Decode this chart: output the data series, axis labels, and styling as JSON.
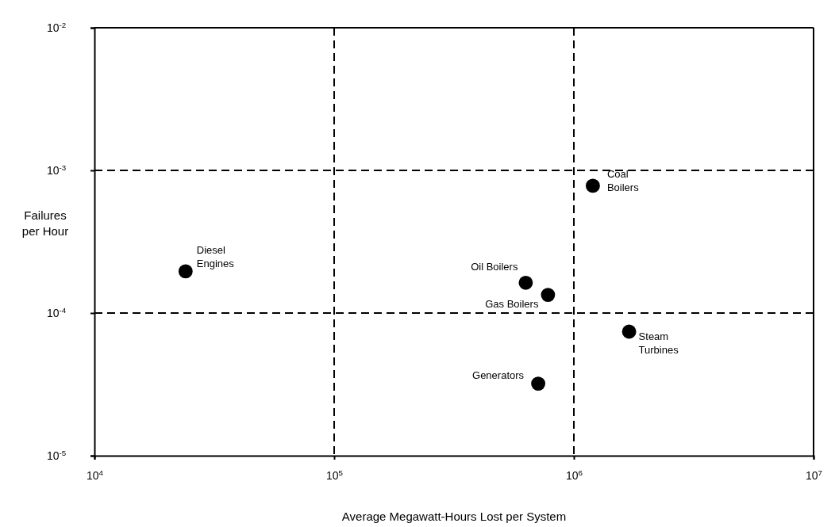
{
  "chart_data": {
    "type": "scatter",
    "xlabel": "Average Megawatt-Hours Lost per System",
    "ylabel": "Failures\nper Hour",
    "log": "xy",
    "grid": true,
    "marker": "circle",
    "xlim": [
      10000,
      10000000
    ],
    "ylim": [
      1e-05,
      0.01
    ],
    "xticks": [
      {
        "value": 10000,
        "label": "10$^{4}$"
      },
      {
        "value": 100000,
        "label": "10$^{5}$"
      },
      {
        "value": 1000000,
        "label": "10$^{6}$"
      },
      {
        "value": 10000000,
        "label": "10$^{7}$"
      }
    ],
    "yticks": [
      {
        "value": 1e-05,
        "label": "10$^{-5}$"
      },
      {
        "value": 0.0001,
        "label": "10$^{-4}$"
      },
      {
        "value": 0.001,
        "label": "10$^{-3}$"
      },
      {
        "value": 0.01,
        "label": "10$^{-2}$"
      }
    ],
    "series": [
      {
        "color": "#000000",
        "x": [
          24000,
          630000,
          780000,
          1200000,
          1700000,
          710000
        ],
        "values": [
          0.000196,
          0.000163,
          0.000134,
          0.00078,
          7.4e-05,
          3.2e-05
        ]
      }
    ],
    "annotations": [
      {
        "text": "Diesel\nEngines",
        "x": 24000,
        "y": 0.000196
      },
      {
        "text": "Oil Boilers",
        "x": 630000,
        "y": 0.000163
      },
      {
        "text": "Gas Boilers",
        "x": 780000,
        "y": 0.000134
      },
      {
        "text": "Coal\nBoilers",
        "x": 1200000,
        "y": 0.00078
      },
      {
        "text": "Steam\nTurbines",
        "x": 1700000,
        "y": 7.4e-05
      },
      {
        "text": "Generators",
        "x": 710000,
        "y": 3.2e-05
      }
    ]
  }
}
